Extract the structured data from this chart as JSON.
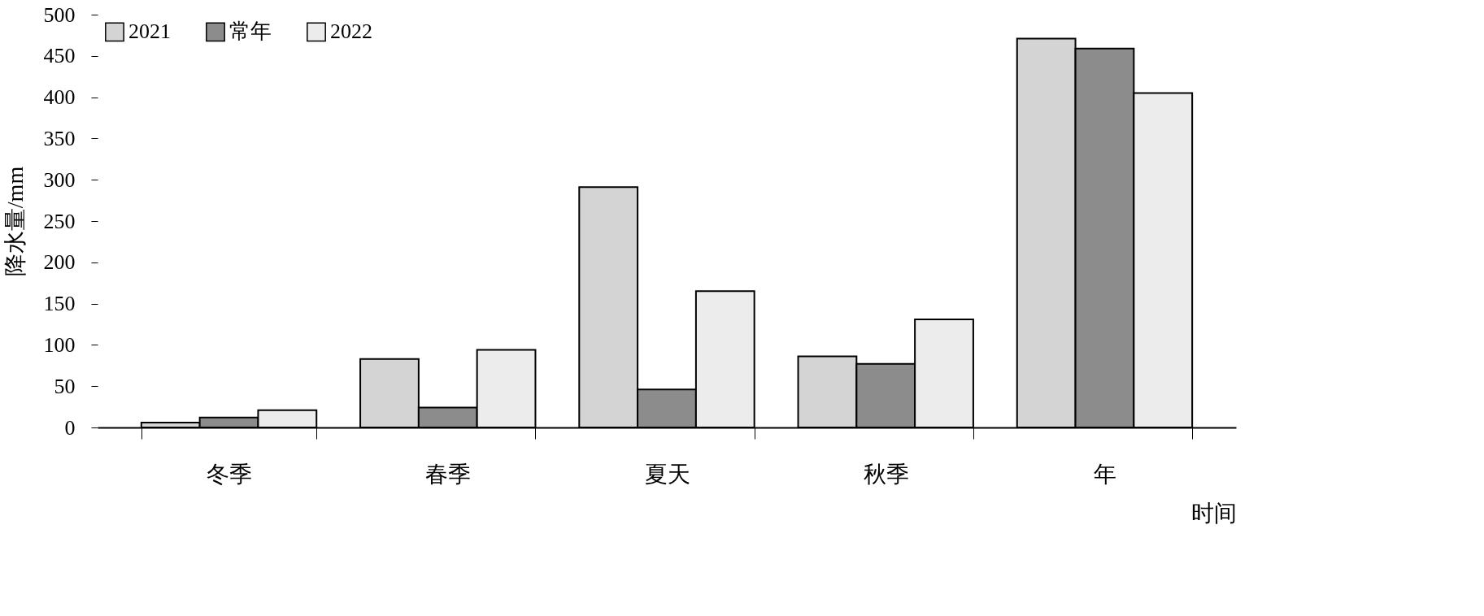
{
  "chart_data": {
    "type": "bar",
    "ylabel": "降水量/mm",
    "xlabel": "时间",
    "categories": [
      "冬季",
      "春季",
      "夏天",
      "秋季",
      "年"
    ],
    "series": [
      {
        "name": "2021",
        "color": "#d4d4d4",
        "values": [
          6,
          83,
          291,
          86,
          471
        ]
      },
      {
        "name": "常年",
        "color": "#8c8c8c",
        "values": [
          12,
          24,
          46,
          77,
          459
        ]
      },
      {
        "name": "2022",
        "color": "#ececec",
        "values": [
          21,
          94,
          165,
          131,
          405
        ]
      }
    ],
    "ylim": [
      0,
      500
    ],
    "yticks": [
      0,
      50,
      100,
      150,
      200,
      250,
      300,
      350,
      400,
      450,
      500
    ],
    "grid": false,
    "legend": "top left"
  }
}
